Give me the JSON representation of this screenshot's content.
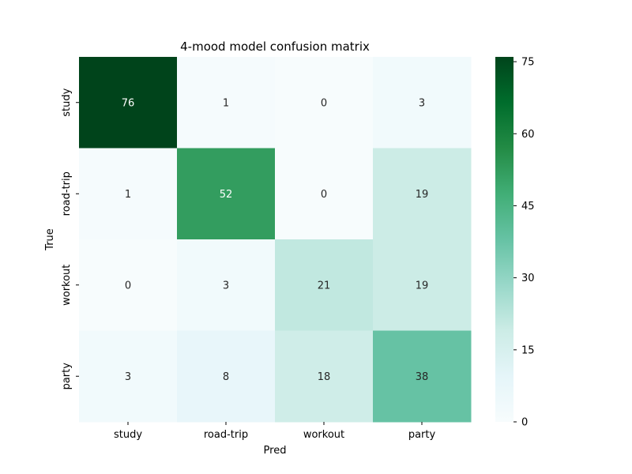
{
  "chart_data": {
    "type": "heatmap",
    "title": "4-mood model confusion matrix",
    "xlabel": "Pred",
    "ylabel": "True",
    "x_categories": [
      "study",
      "road-trip",
      "workout",
      "party"
    ],
    "y_categories": [
      "study",
      "road-trip",
      "workout",
      "party"
    ],
    "values": [
      [
        76,
        1,
        0,
        3
      ],
      [
        1,
        52,
        0,
        19
      ],
      [
        0,
        3,
        21,
        19
      ],
      [
        3,
        8,
        18,
        38
      ]
    ],
    "colorbar": {
      "min": 0,
      "max": 76,
      "ticks": [
        0,
        15,
        30,
        45,
        60,
        75
      ]
    },
    "colormap": [
      "#f7fcfd",
      "#e5f5f9",
      "#ccece6",
      "#99d8c9",
      "#66c2a4",
      "#41ae76",
      "#238b45",
      "#006d2c",
      "#00441b"
    ],
    "annotation_colors": {
      "dark_text": "#262626",
      "light_text": "#ffffff"
    },
    "grid": false
  }
}
